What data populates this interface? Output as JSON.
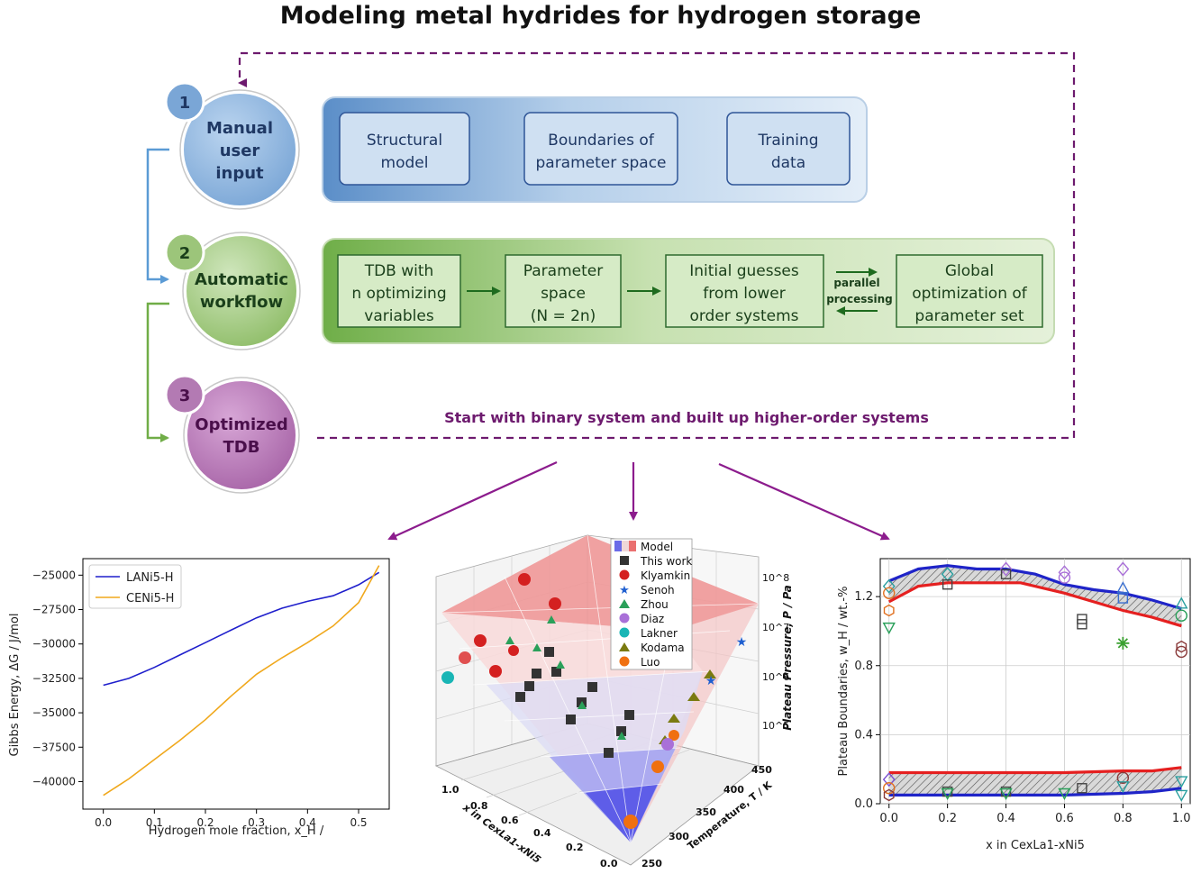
{
  "title": "Modeling metal hydrides for hydrogen storage",
  "colors": {
    "blue_dark": "#5b8ec8",
    "blue_light": "#cfe0f2",
    "green_dark": "#6fae48",
    "green_light": "#d9ecc8",
    "purple": "#6d1a6e",
    "step3": "#b071b0"
  },
  "steps": [
    {
      "num": "1",
      "lines": [
        "Manual",
        "user",
        "input"
      ]
    },
    {
      "num": "2",
      "lines": [
        "Automatic",
        "workflow"
      ]
    },
    {
      "num": "3",
      "lines": [
        "Optimized",
        "TDB"
      ]
    }
  ],
  "row1_boxes": [
    {
      "lines": [
        "Structural",
        "model"
      ]
    },
    {
      "lines": [
        "Boundaries of",
        "parameter space"
      ]
    },
    {
      "lines": [
        "Training",
        "data"
      ]
    }
  ],
  "row2_boxes": [
    {
      "lines": [
        "TDB with",
        "n optimizing",
        "variables"
      ]
    },
    {
      "lines": [
        "Parameter",
        "space",
        "(N = 2n)"
      ]
    },
    {
      "lines": [
        "Initial guesses",
        "from lower",
        "order systems"
      ]
    },
    {
      "lines": [
        "Global",
        "optimization of",
        "parameter set"
      ]
    }
  ],
  "parallel_label": [
    "parallel",
    "processing"
  ],
  "loop_label": "Start with binary system and built up higher-order systems",
  "chart_data": [
    {
      "type": "line",
      "xlabel": "Hydrogen mole fraction, x_H /",
      "ylabel": "Gibbs Energy, ΔG / J/mol",
      "xlim": [
        -0.04,
        0.56
      ],
      "ylim": [
        -42000,
        -23800
      ],
      "xticks": [
        "0.0",
        "0.1",
        "0.2",
        "0.3",
        "0.4",
        "0.5"
      ],
      "xtick_values": [
        0.0,
        0.1,
        0.2,
        0.3,
        0.4,
        0.5
      ],
      "yticks": [
        "−25000",
        "−27500",
        "−30000",
        "−32500",
        "−35000",
        "−37500",
        "−40000"
      ],
      "ytick_values": [
        -25000,
        -27500,
        -30000,
        -32500,
        -35000,
        -37500,
        -40000
      ],
      "legend_position": "upper-left",
      "series": [
        {
          "name": "LANi5-H",
          "color": "#1f1fcc",
          "x": [
            0,
            0.05,
            0.1,
            0.15,
            0.2,
            0.25,
            0.3,
            0.35,
            0.4,
            0.45,
            0.5,
            0.54
          ],
          "y": [
            -33000,
            -32500,
            -31700,
            -30800,
            -29900,
            -29000,
            -28100,
            -27400,
            -26900,
            -26500,
            -25700,
            -24800
          ]
        },
        {
          "name": "CENi5-H",
          "color": "#f0a81c",
          "x": [
            0,
            0.05,
            0.1,
            0.15,
            0.2,
            0.25,
            0.3,
            0.35,
            0.4,
            0.45,
            0.5,
            0.54
          ],
          "y": [
            -41000,
            -39800,
            -38400,
            -37000,
            -35500,
            -33800,
            -32200,
            -31000,
            -29900,
            -28700,
            -27000,
            -24300
          ]
        }
      ]
    },
    {
      "type": "scatter",
      "xlabel": "x in CexLa1-xNi5",
      "ylabel": "Temperature, T / K",
      "zlabel": "Plateau Pressure, P / Pa",
      "x_ticks": [
        "0.0",
        "0.2",
        "0.4",
        "0.6",
        "0.8",
        "1.0"
      ],
      "t_ticks": [
        "250",
        "300",
        "350",
        "400",
        "450"
      ],
      "p_ticks": [
        "10^5",
        "10^6",
        "10^7",
        "10^8"
      ],
      "legend": [
        "Model",
        "This work",
        "Klyamkin",
        "Senoh",
        "Zhou",
        "Diaz",
        "Lakner",
        "Kodama",
        "Luo"
      ]
    },
    {
      "type": "line",
      "xlabel": "x in CexLa1-xNi5",
      "ylabel": "Plateau Boundaries, w_H / wt.-%",
      "xlim": [
        -0.03,
        1.03
      ],
      "ylim": [
        0,
        1.42
      ],
      "xticks": [
        "0.0",
        "0.2",
        "0.4",
        "0.6",
        "0.8",
        "1.0"
      ],
      "xtick_values": [
        0.0,
        0.2,
        0.4,
        0.6,
        0.8,
        1.0
      ],
      "yticks": [
        "0.0",
        "0.4",
        "0.8",
        "1.2"
      ],
      "ytick_values": [
        0.0,
        0.4,
        0.8,
        1.2
      ],
      "series": [
        {
          "name": "",
          "color": "#1f24c8",
          "x": [
            0,
            0.1,
            0.2,
            0.3,
            0.4,
            0.5,
            0.6,
            0.7,
            0.8,
            0.9,
            1.0
          ],
          "y": [
            1.29,
            1.36,
            1.38,
            1.36,
            1.36,
            1.33,
            1.27,
            1.24,
            1.22,
            1.18,
            1.13
          ]
        },
        {
          "name": "",
          "color": "#e52020",
          "x": [
            0,
            0.1,
            0.2,
            0.3,
            0.4,
            0.45,
            0.6,
            0.7,
            0.8,
            0.9,
            1.0
          ],
          "y": [
            1.17,
            1.26,
            1.28,
            1.28,
            1.28,
            1.28,
            1.22,
            1.17,
            1.12,
            1.08,
            1.03
          ]
        },
        {
          "name": "",
          "color": "#e52020",
          "x": [
            0,
            0.2,
            0.4,
            0.6,
            0.8,
            0.9,
            1.0
          ],
          "y": [
            0.18,
            0.18,
            0.18,
            0.18,
            0.19,
            0.19,
            0.21
          ]
        },
        {
          "name": "",
          "color": "#1f24c8",
          "x": [
            0,
            0.2,
            0.4,
            0.6,
            0.8,
            0.9,
            1.0
          ],
          "y": [
            0.05,
            0.05,
            0.05,
            0.05,
            0.06,
            0.07,
            0.09
          ]
        }
      ]
    }
  ]
}
